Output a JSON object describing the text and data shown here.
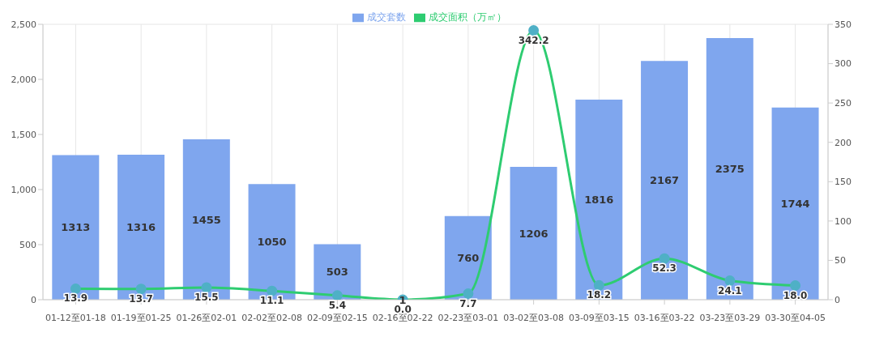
{
  "chart_data": {
    "type": "bar",
    "categories": [
      "01-12至01-18",
      "01-19至01-25",
      "01-26至02-01",
      "02-02至02-08",
      "02-09至02-15",
      "02-16至02-22",
      "02-23至03-01",
      "03-02至03-08",
      "03-09至03-15",
      "03-16至03-22",
      "03-23至03-29",
      "03-30至04-05"
    ],
    "series": [
      {
        "name": "成交套数",
        "color": "#7fa6ee",
        "values": [
          1313,
          1316,
          1455,
          1050,
          503,
          1,
          760,
          1206,
          1816,
          2167,
          2375,
          1744
        ]
      },
      {
        "name": "成交面积（万㎡）",
        "type": "line",
        "axis": "y2",
        "color": "#2ecc71",
        "marker": "circle",
        "line_style": "solid",
        "values": [
          13.9,
          13.7,
          15.5,
          11.1,
          5.4,
          0.0,
          7.7,
          342.2,
          18.2,
          52.3,
          24.1,
          18.0
        ],
        "value_labels": [
          "13.9",
          "13.7",
          "15.5",
          "11.1",
          "5.4",
          "0.0",
          "7.7",
          "342.2",
          "18.2",
          "52.3",
          "24.1",
          "18.0"
        ]
      }
    ],
    "ylim": [
      0,
      2500
    ],
    "yticks": [
      0,
      500,
      {
        "value": 1000,
        "label": "1,000"
      },
      {
        "value": 1500,
        "label": "1,500"
      },
      {
        "value": 2000,
        "label": "2,000"
      },
      {
        "value": 2500,
        "label": "2,500"
      }
    ],
    "y2lim": [
      0,
      350
    ],
    "y2ticks": [
      0,
      50,
      100,
      150,
      200,
      250,
      300,
      350
    ],
    "grid": true,
    "legend": "top",
    "data_labels": true
  }
}
